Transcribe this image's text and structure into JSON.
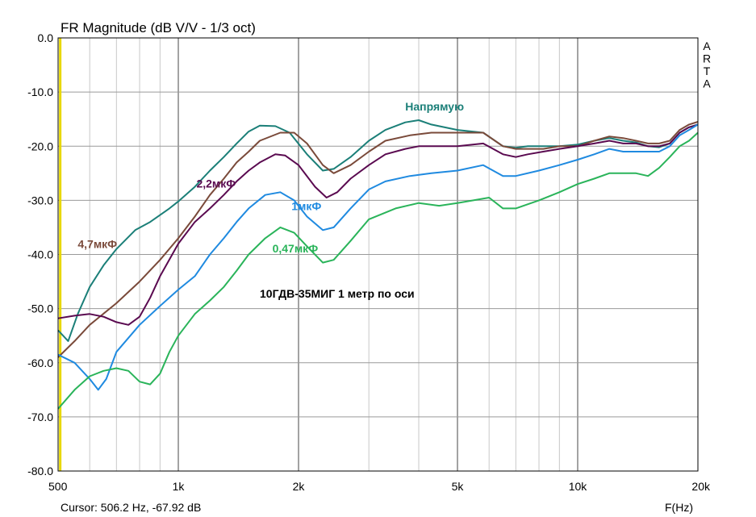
{
  "chart_data": {
    "type": "line",
    "title": "FR Magnitude (dB V/V - 1/3 oct)",
    "side_label": [
      "A",
      "R",
      "T",
      "A"
    ],
    "annotation": "10ГДВ-35МИГ 1 метр по оси",
    "xlabel": "F(Hz)",
    "xscale": "log",
    "xlim": [
      500,
      20000
    ],
    "ylim": [
      -80,
      0
    ],
    "x_ticks": [
      {
        "value": 500,
        "label": "500"
      },
      {
        "value": 1000,
        "label": "1k"
      },
      {
        "value": 2000,
        "label": "2k"
      },
      {
        "value": 5000,
        "label": "5k"
      },
      {
        "value": 10000,
        "label": "10k"
      },
      {
        "value": 20000,
        "label": "20k"
      }
    ],
    "y_ticks": [
      {
        "value": 0,
        "label": "0.0"
      },
      {
        "value": -10,
        "label": "-10.0"
      },
      {
        "value": -20,
        "label": "-20.0"
      },
      {
        "value": -30,
        "label": "-30.0"
      },
      {
        "value": -40,
        "label": "-40.0"
      },
      {
        "value": -50,
        "label": "-50.0"
      },
      {
        "value": -60,
        "label": "-60.0"
      },
      {
        "value": -70,
        "label": "-70.0"
      },
      {
        "value": -80,
        "label": "-80.0"
      }
    ],
    "grid": true,
    "cursor": {
      "freq": 506.2,
      "label": "Cursor: 506.2 Hz, -67.92 dB",
      "color": "#e8d800"
    },
    "series": [
      {
        "name": "Напрямую",
        "color": "#1b7f78",
        "label_at": [
          3700,
          -13.4
        ],
        "points": [
          [
            500,
            -54
          ],
          [
            530,
            -56
          ],
          [
            560,
            -51
          ],
          [
            600,
            -46
          ],
          [
            650,
            -42
          ],
          [
            700,
            -39
          ],
          [
            780,
            -35.5
          ],
          [
            850,
            -34
          ],
          [
            950,
            -31.5
          ],
          [
            1000,
            -30.2
          ],
          [
            1100,
            -27.5
          ],
          [
            1200,
            -24.5
          ],
          [
            1300,
            -22
          ],
          [
            1400,
            -19.5
          ],
          [
            1500,
            -17.3
          ],
          [
            1600,
            -16.2
          ],
          [
            1750,
            -16.3
          ],
          [
            1900,
            -17.5
          ],
          [
            2100,
            -21.5
          ],
          [
            2300,
            -24.5
          ],
          [
            2450,
            -24.2
          ],
          [
            2700,
            -22
          ],
          [
            3000,
            -19
          ],
          [
            3300,
            -17
          ],
          [
            3700,
            -15.6
          ],
          [
            4000,
            -15.2
          ],
          [
            4300,
            -16
          ],
          [
            5000,
            -17
          ],
          [
            5800,
            -17.5
          ],
          [
            6500,
            -20
          ],
          [
            7000,
            -20.3
          ],
          [
            7500,
            -20
          ],
          [
            8200,
            -20
          ],
          [
            9000,
            -20
          ],
          [
            10000,
            -19.7
          ],
          [
            11000,
            -19
          ],
          [
            12000,
            -18.5
          ],
          [
            13000,
            -19
          ],
          [
            14000,
            -19.3
          ],
          [
            15000,
            -20
          ],
          [
            16000,
            -20.2
          ],
          [
            17000,
            -19.5
          ],
          [
            18000,
            -17.5
          ],
          [
            19000,
            -16.5
          ],
          [
            20000,
            -16
          ]
        ]
      },
      {
        "name": "4,7мкФ",
        "color": "#7a4a3a",
        "label_at": [
          560,
          -38.8
        ],
        "points": [
          [
            500,
            -59
          ],
          [
            550,
            -56
          ],
          [
            600,
            -53
          ],
          [
            700,
            -49
          ],
          [
            800,
            -45
          ],
          [
            900,
            -41
          ],
          [
            1000,
            -37
          ],
          [
            1100,
            -33
          ],
          [
            1200,
            -29
          ],
          [
            1300,
            -26
          ],
          [
            1400,
            -23
          ],
          [
            1500,
            -21
          ],
          [
            1600,
            -19
          ],
          [
            1800,
            -17.5
          ],
          [
            1950,
            -17.5
          ],
          [
            2100,
            -19.5
          ],
          [
            2300,
            -23.5
          ],
          [
            2450,
            -25
          ],
          [
            2700,
            -23.5
          ],
          [
            3000,
            -21
          ],
          [
            3300,
            -19
          ],
          [
            3800,
            -18
          ],
          [
            4300,
            -17.5
          ],
          [
            5000,
            -17.5
          ],
          [
            5800,
            -17.5
          ],
          [
            6500,
            -20
          ],
          [
            7000,
            -20.5
          ],
          [
            7500,
            -20.5
          ],
          [
            8200,
            -20.5
          ],
          [
            9000,
            -20
          ],
          [
            10000,
            -20
          ],
          [
            11000,
            -19
          ],
          [
            12000,
            -18.2
          ],
          [
            13000,
            -18.5
          ],
          [
            14000,
            -19
          ],
          [
            15000,
            -19.5
          ],
          [
            16000,
            -19.5
          ],
          [
            17000,
            -19
          ],
          [
            18000,
            -17
          ],
          [
            19000,
            -16
          ],
          [
            20000,
            -15.5
          ]
        ]
      },
      {
        "name": "2,2мкФ",
        "color": "#5a0a50",
        "label_at": [
          1110,
          -27.6
        ],
        "points": [
          [
            500,
            -51.8
          ],
          [
            550,
            -51.3
          ],
          [
            600,
            -51
          ],
          [
            650,
            -51.5
          ],
          [
            700,
            -52.5
          ],
          [
            750,
            -53
          ],
          [
            800,
            -51.5
          ],
          [
            850,
            -48
          ],
          [
            900,
            -44
          ],
          [
            1000,
            -38
          ],
          [
            1100,
            -34
          ],
          [
            1200,
            -31.5
          ],
          [
            1300,
            -29
          ],
          [
            1400,
            -26.5
          ],
          [
            1500,
            -24.5
          ],
          [
            1600,
            -23
          ],
          [
            1750,
            -21.5
          ],
          [
            1850,
            -21.7
          ],
          [
            2000,
            -23.5
          ],
          [
            2200,
            -27.5
          ],
          [
            2350,
            -29.5
          ],
          [
            2500,
            -28.5
          ],
          [
            2700,
            -26
          ],
          [
            3000,
            -23.5
          ],
          [
            3300,
            -21.5
          ],
          [
            3700,
            -20.5
          ],
          [
            4000,
            -20
          ],
          [
            5000,
            -20
          ],
          [
            5800,
            -19.5
          ],
          [
            6500,
            -21.5
          ],
          [
            7000,
            -22
          ],
          [
            7500,
            -21.5
          ],
          [
            8200,
            -21
          ],
          [
            9000,
            -20.5
          ],
          [
            10000,
            -20
          ],
          [
            11000,
            -19.5
          ],
          [
            12000,
            -19
          ],
          [
            13000,
            -19.5
          ],
          [
            14000,
            -19.5
          ],
          [
            15000,
            -20
          ],
          [
            16000,
            -20
          ],
          [
            17000,
            -19.5
          ],
          [
            18000,
            -17.5
          ],
          [
            19000,
            -16.5
          ],
          [
            20000,
            -16
          ]
        ]
      },
      {
        "name": "1мкФ",
        "color": "#1f8ae0",
        "label_at": [
          1920,
          -31.8
        ],
        "points": [
          [
            500,
            -58.5
          ],
          [
            550,
            -60
          ],
          [
            600,
            -63
          ],
          [
            630,
            -65
          ],
          [
            660,
            -63
          ],
          [
            700,
            -58
          ],
          [
            800,
            -53
          ],
          [
            900,
            -49.5
          ],
          [
            1000,
            -46.5
          ],
          [
            1100,
            -44
          ],
          [
            1200,
            -40
          ],
          [
            1300,
            -37
          ],
          [
            1400,
            -34
          ],
          [
            1500,
            -31.5
          ],
          [
            1650,
            -29
          ],
          [
            1800,
            -28.5
          ],
          [
            1950,
            -30
          ],
          [
            2100,
            -33
          ],
          [
            2300,
            -35.5
          ],
          [
            2450,
            -35
          ],
          [
            2700,
            -31.5
          ],
          [
            3000,
            -28
          ],
          [
            3300,
            -26.5
          ],
          [
            3800,
            -25.5
          ],
          [
            4300,
            -25
          ],
          [
            5000,
            -24.5
          ],
          [
            5800,
            -23.5
          ],
          [
            6500,
            -25.5
          ],
          [
            7000,
            -25.5
          ],
          [
            8000,
            -24.5
          ],
          [
            9000,
            -23.5
          ],
          [
            10000,
            -22.5
          ],
          [
            11000,
            -21.5
          ],
          [
            12000,
            -20.5
          ],
          [
            13000,
            -21
          ],
          [
            14000,
            -21
          ],
          [
            15000,
            -21
          ],
          [
            16000,
            -21
          ],
          [
            17000,
            -20
          ],
          [
            18000,
            -18
          ],
          [
            19000,
            -17
          ],
          [
            20000,
            -16
          ]
        ]
      },
      {
        "name": "0,47мкФ",
        "color": "#2ab45a",
        "label_at": [
          1720,
          -39.6
        ],
        "points": [
          [
            500,
            -68.5
          ],
          [
            550,
            -65
          ],
          [
            600,
            -62.5
          ],
          [
            650,
            -61.5
          ],
          [
            700,
            -61
          ],
          [
            750,
            -61.5
          ],
          [
            800,
            -63.5
          ],
          [
            850,
            -64
          ],
          [
            900,
            -62
          ],
          [
            950,
            -58
          ],
          [
            1000,
            -55
          ],
          [
            1100,
            -51
          ],
          [
            1200,
            -48.5
          ],
          [
            1300,
            -46
          ],
          [
            1400,
            -43
          ],
          [
            1500,
            -40
          ],
          [
            1650,
            -37
          ],
          [
            1800,
            -35
          ],
          [
            1950,
            -36
          ],
          [
            2100,
            -38.5
          ],
          [
            2300,
            -41.5
          ],
          [
            2450,
            -41
          ],
          [
            2700,
            -37.5
          ],
          [
            3000,
            -33.5
          ],
          [
            3500,
            -31.5
          ],
          [
            4000,
            -30.5
          ],
          [
            4500,
            -31
          ],
          [
            5000,
            -30.5
          ],
          [
            6000,
            -29.5
          ],
          [
            6500,
            -31.5
          ],
          [
            7000,
            -31.5
          ],
          [
            8000,
            -30
          ],
          [
            9000,
            -28.5
          ],
          [
            10000,
            -27
          ],
          [
            11000,
            -26
          ],
          [
            12000,
            -25
          ],
          [
            13000,
            -25
          ],
          [
            14000,
            -25
          ],
          [
            15000,
            -25.5
          ],
          [
            16000,
            -24
          ],
          [
            17000,
            -22
          ],
          [
            18000,
            -20
          ],
          [
            19000,
            -19
          ],
          [
            20000,
            -17.5
          ]
        ]
      }
    ]
  }
}
